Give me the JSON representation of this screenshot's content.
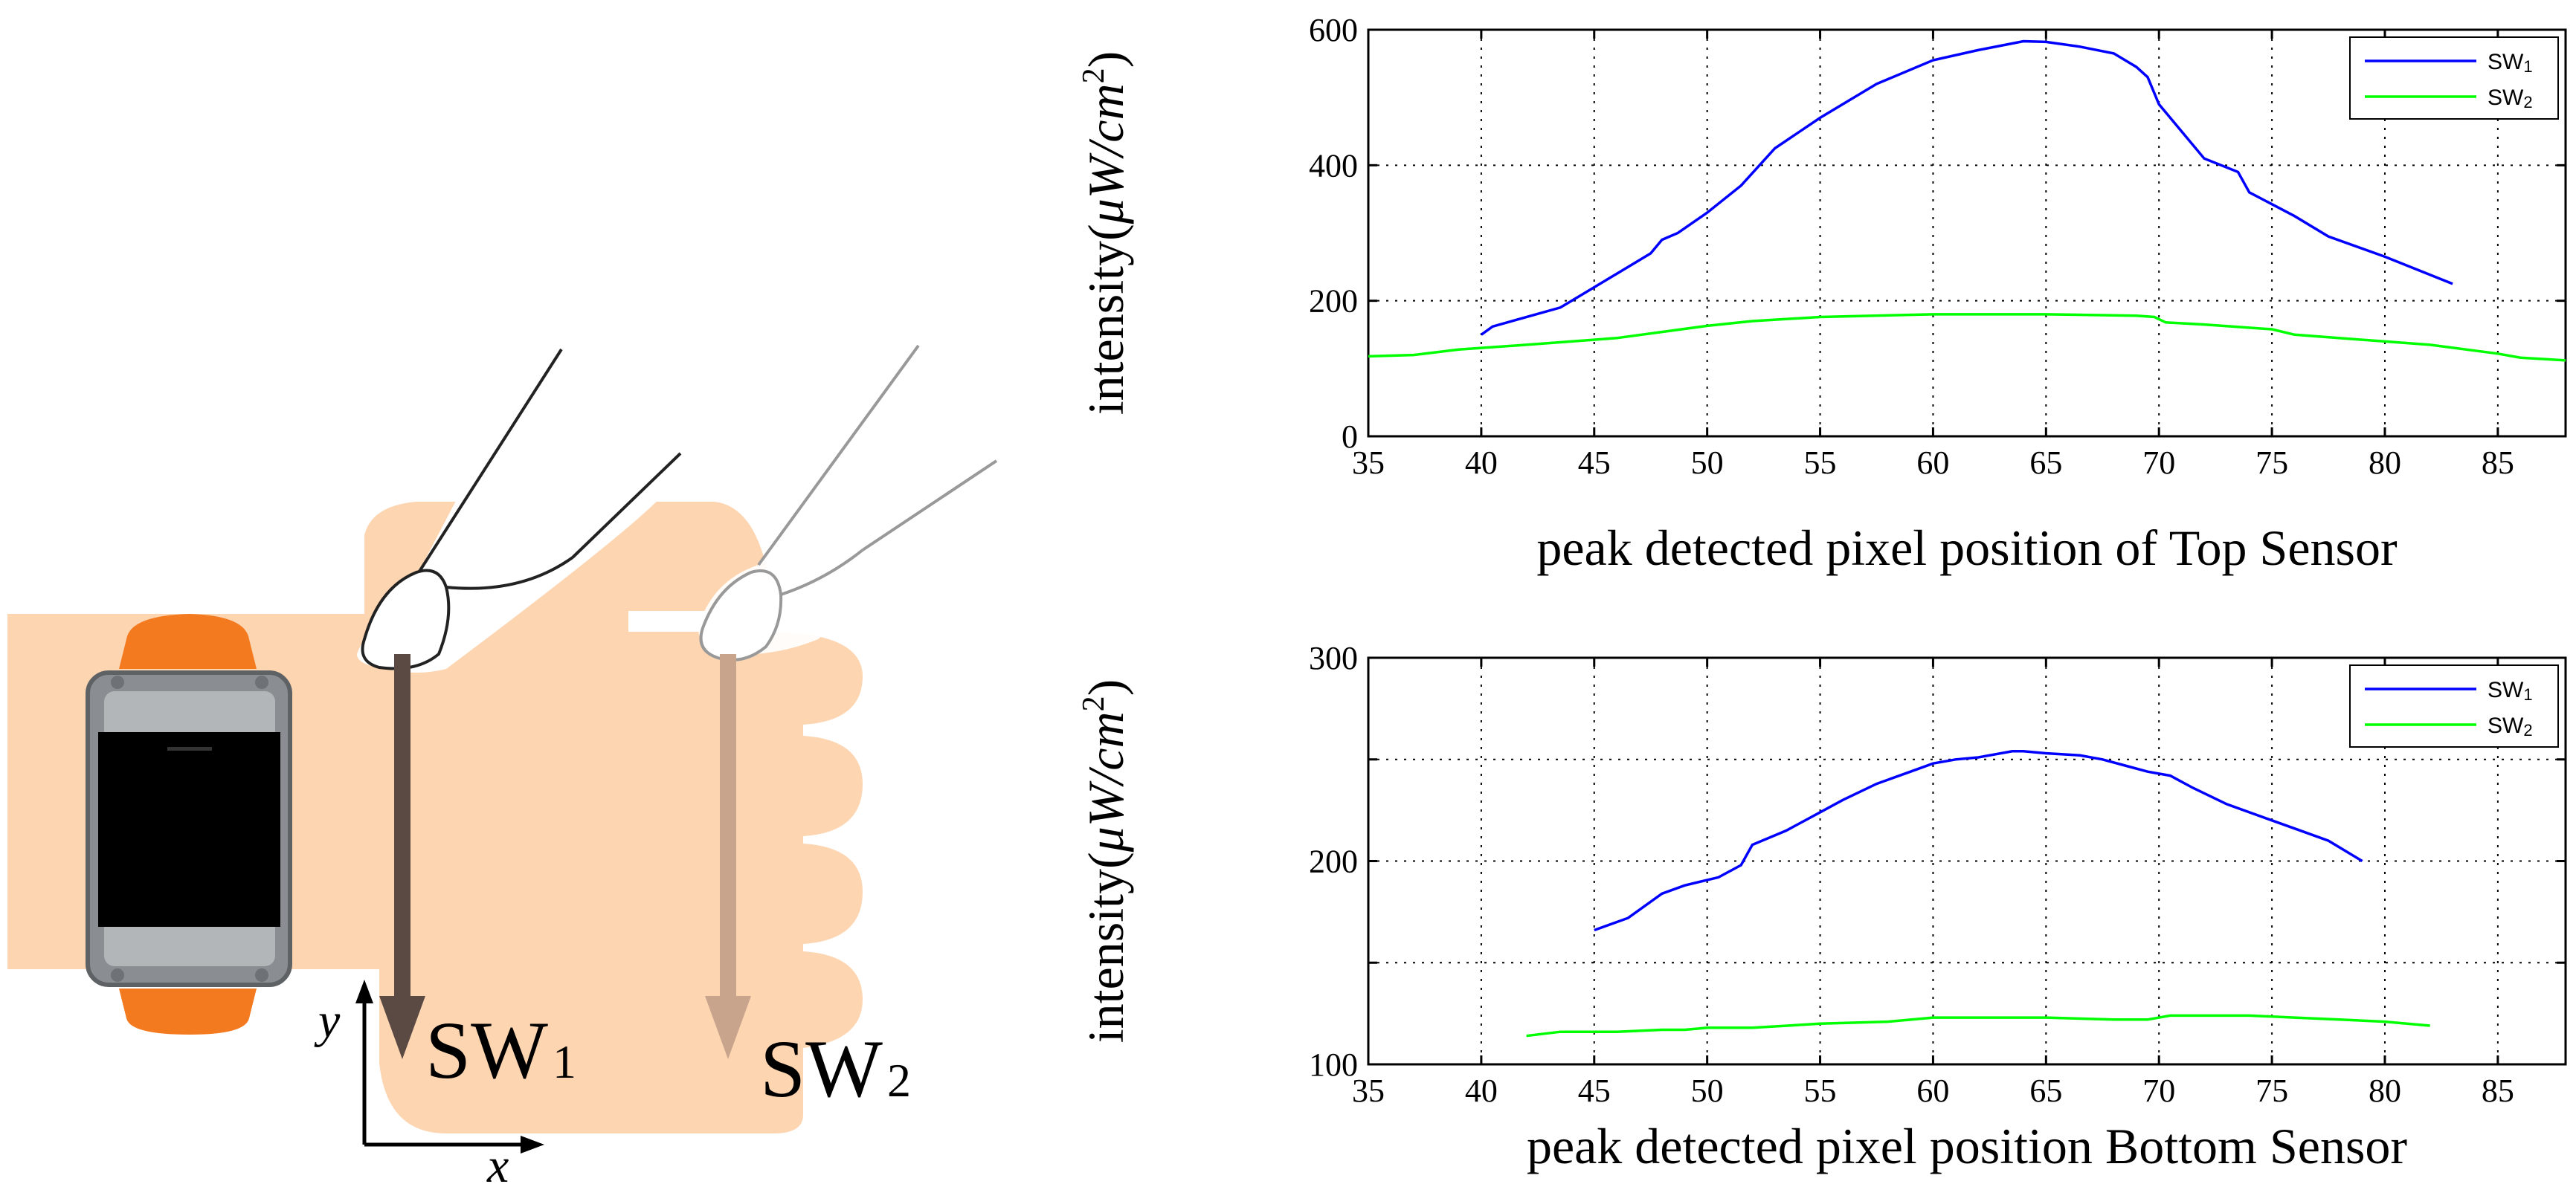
{
  "illustration": {
    "sw1_label": "SW",
    "sw1_sub": "1",
    "sw2_label": "SW",
    "sw2_sub": "2",
    "axis_y": "y",
    "axis_x": "x",
    "colors": {
      "hand": "#fdd5b1",
      "band": "#f47a20",
      "watch_body": "#8a8e92",
      "screen": "#000000",
      "arrow1": "#5b4a44",
      "arrow2": "#c9a48c"
    }
  },
  "chart_data": [
    {
      "type": "line",
      "id": "top",
      "title": "",
      "xlabel": "peak detected pixel position of Top Sensor",
      "ylabel_prefix": "intensity(",
      "ylabel_unit": "μW/cm",
      "ylabel_exp": "2",
      "ylabel_suffix": ")",
      "xlim": [
        35,
        88
      ],
      "ylim": [
        0,
        600
      ],
      "xticks": [
        "35",
        "40",
        "45",
        "50",
        "55",
        "60",
        "65",
        "70",
        "75",
        "80",
        "85"
      ],
      "yticks": [
        "0",
        "200",
        "400",
        "600"
      ],
      "grid": true,
      "legend": "top-right",
      "legend_entries": [
        {
          "main": "SW",
          "sub": "1"
        },
        {
          "main": "SW",
          "sub": "2"
        }
      ],
      "series": [
        {
          "name": "SW1",
          "color": "#0000ff",
          "x": [
            40,
            40.5,
            43.5,
            44.5,
            46,
            47.5,
            48,
            48.7,
            50,
            51.5,
            53,
            55,
            57.5,
            60,
            62,
            64,
            65,
            66.5,
            68,
            69,
            69.5,
            70,
            70.5,
            71,
            72,
            73.5,
            74,
            76,
            77.5,
            80,
            83
          ],
          "y": [
            150,
            162,
            190,
            210,
            240,
            270,
            290,
            300,
            330,
            370,
            425,
            470,
            520,
            555,
            570,
            583,
            582,
            575,
            565,
            545,
            530,
            490,
            470,
            450,
            410,
            390,
            360,
            325,
            295,
            265,
            225
          ]
        },
        {
          "name": "SW2",
          "color": "#00ff00",
          "x": [
            35,
            37,
            39,
            42,
            46,
            50,
            52,
            55,
            60,
            65,
            69,
            69.8,
            70.3,
            72,
            75,
            76,
            80,
            82,
            85,
            86,
            88
          ],
          "y": [
            118,
            120,
            128,
            135,
            145,
            163,
            170,
            176,
            180,
            180,
            178,
            176,
            168,
            165,
            158,
            150,
            140,
            135,
            122,
            116,
            112
          ]
        }
      ]
    },
    {
      "type": "line",
      "id": "bottom",
      "title": "",
      "xlabel": "peak detected pixel position Bottom Sensor",
      "ylabel_prefix": "intensity(",
      "ylabel_unit": "μW/cm",
      "ylabel_exp": "2",
      "ylabel_suffix": ")",
      "xlim": [
        35,
        88
      ],
      "ylim": [
        100,
        300
      ],
      "xticks": [
        "35",
        "40",
        "45",
        "50",
        "55",
        "60",
        "65",
        "70",
        "75",
        "80",
        "85"
      ],
      "yticks": [
        "100",
        "",
        "200",
        "",
        "300"
      ],
      "ytick_values": [
        100,
        150,
        200,
        250,
        300
      ],
      "grid": true,
      "legend": "top-right",
      "legend_entries": [
        {
          "main": "SW",
          "sub": "1"
        },
        {
          "main": "SW",
          "sub": "2"
        }
      ],
      "series": [
        {
          "name": "SW1",
          "color": "#0000ff",
          "x": [
            45,
            46.5,
            48,
            49,
            50.5,
            51.5,
            52,
            53.5,
            55,
            56,
            57.5,
            59,
            60,
            61,
            62,
            63.5,
            64,
            65,
            66.5,
            67.5,
            68.5,
            69.5,
            70.5,
            71.5,
            73,
            75,
            76,
            77.5,
            79
          ],
          "y": [
            166,
            172,
            184,
            188,
            192,
            198,
            208,
            215,
            224,
            230,
            238,
            244,
            248,
            250,
            251,
            254,
            254,
            253,
            252,
            250,
            247,
            244,
            242,
            236,
            228,
            220,
            216,
            210,
            200
          ]
        },
        {
          "name": "SW2",
          "color": "#00ff00",
          "x": [
            42,
            43.5,
            44.5,
            46,
            48,
            49,
            50,
            52,
            55,
            58,
            60,
            62,
            65,
            68,
            69.5,
            70.5,
            72,
            74,
            76,
            78,
            80,
            82
          ],
          "y": [
            114,
            116,
            116,
            116,
            117,
            117,
            118,
            118,
            120,
            121,
            123,
            123,
            123,
            122,
            122,
            124,
            124,
            124,
            123,
            122,
            121,
            119
          ]
        }
      ]
    }
  ]
}
